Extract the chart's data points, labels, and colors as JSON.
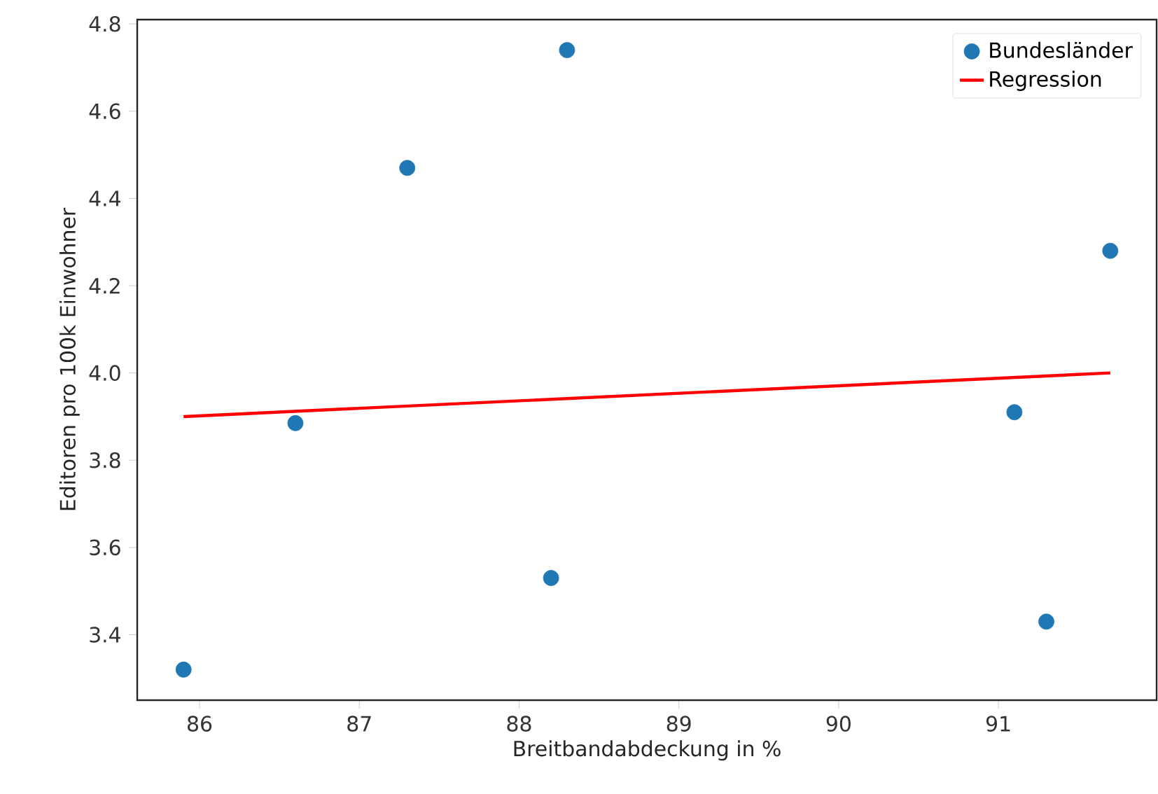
{
  "chart_data": {
    "type": "scatter",
    "xlabel": "Breitbandabdeckung in %",
    "ylabel": "Editoren pro 100k Einwohner",
    "xlim": [
      85.61,
      91.99
    ],
    "ylim": [
      3.25,
      4.81
    ],
    "xticks": [
      86,
      87,
      88,
      89,
      90,
      91
    ],
    "yticks": [
      3.4,
      3.6,
      3.8,
      {
        "value": 4.0,
        "label": "4.0"
      },
      4.2,
      4.4,
      4.6,
      4.8
    ],
    "legend": "top right",
    "grid": false,
    "series": [
      {
        "name": "Bundesländer",
        "marker": "circle",
        "color": "#1f77b4",
        "x": [
          85.9,
          86.6,
          87.3,
          88.2,
          88.3,
          91.1,
          91.3,
          91.7
        ],
        "values": [
          3.32,
          3.885,
          4.47,
          3.53,
          4.74,
          3.91,
          3.43,
          4.28
        ]
      },
      {
        "name": "Regression",
        "type": "line",
        "marker": "none",
        "color": "#ff0000",
        "x": [
          85.9,
          91.7
        ],
        "values": [
          3.9,
          4.0
        ]
      }
    ]
  }
}
